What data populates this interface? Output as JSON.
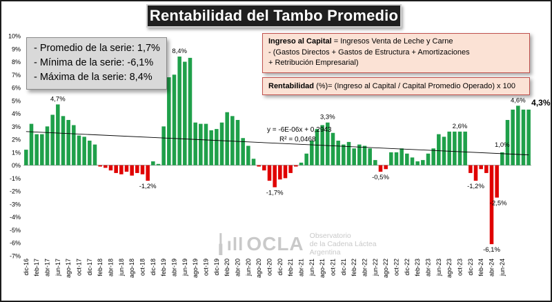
{
  "title": "Rentabilidad del Tambo Promedio",
  "stats": {
    "promedio": "- Promedio de la serie: 1,7%",
    "minima": "- Mínima de la serie: -6,1%",
    "maxima": "- Máxima de la serie: 8,4%"
  },
  "definition": {
    "bold": "Ingreso al Capital",
    "rest": " = Ingresos Venta de Leche y Carne",
    "line2": "-  (Gastos Directos + Gastos de Estructura  + Amortizaciones",
    "line3": "+  Retribución Empresarial)"
  },
  "rentabilidad": {
    "bold": "Rentabilidad",
    "rest": " (%)= (Ingreso al Capital / Capital Promedio Operado) x 100"
  },
  "trendline": {
    "equation": "y = -6E-06x + 0,2943",
    "r2": "R² = 0,0468"
  },
  "logo": {
    "word": "OCLA",
    "line1": "Observatorio",
    "line2": "de la Cadena Láctea",
    "line3": "Argentina"
  },
  "chart_data": {
    "type": "bar",
    "title": "Rentabilidad del Tambo Promedio",
    "ylim": [
      -7,
      10
    ],
    "y_ticks": [
      -7,
      -6,
      -5,
      -4,
      -3,
      -2,
      -1,
      0,
      1,
      2,
      3,
      4,
      5,
      6,
      7,
      8,
      9,
      10
    ],
    "y_tick_format": "percent",
    "grid": false,
    "legend": "none",
    "colors": {
      "positive": "#1fa04a",
      "negative": "#e00000",
      "trendline": "#000000"
    },
    "trendline": {
      "type": "linear",
      "start": 2.6,
      "end": 0.8
    },
    "x_tick_labels": [
      "dic-16",
      "feb-17",
      "abr-17",
      "jun-17",
      "ago-17",
      "oct-17",
      "dic-17",
      "feb-18",
      "abr-18",
      "jun-18",
      "ago-18",
      "oct-18",
      "dic-18",
      "feb-19",
      "abr-19",
      "jun-19",
      "ago-19",
      "oct-19",
      "dic-19",
      "feb-20",
      "abr-20",
      "jun-20",
      "ago-20",
      "oct-20",
      "dic-20",
      "feb-21",
      "abr-21",
      "jun-21",
      "ago-21",
      "oct-21",
      "dic-21",
      "feb-22",
      "abr-22",
      "jun-22",
      "ago-22",
      "oct-22",
      "dic-22",
      "feb-23",
      "abr-23",
      "jun-23",
      "ago-23",
      "oct-23",
      "dic-23",
      "feb-24",
      "abr-24",
      "jun-24"
    ],
    "values": [
      1.2,
      3.2,
      2.4,
      2.4,
      3.0,
      3.9,
      4.7,
      3.8,
      3.5,
      3.1,
      2.3,
      2.2,
      1.9,
      1.6,
      -0.1,
      -0.2,
      -0.4,
      -0.6,
      -0.7,
      -0.5,
      -0.8,
      -0.6,
      -0.7,
      -1.2,
      0.3,
      0.1,
      3.0,
      6.8,
      7.0,
      8.4,
      8.0,
      8.3,
      3.3,
      3.2,
      3.2,
      2.7,
      2.8,
      3.3,
      4.1,
      3.8,
      3.5,
      2.1,
      1.5,
      0.5,
      -0.1,
      -0.4,
      -1.2,
      -1.7,
      -1.1,
      -1.0,
      -0.6,
      -0.1,
      0.2,
      0.9,
      1.9,
      2.8,
      3.1,
      3.3,
      2.5,
      1.9,
      1.6,
      1.8,
      1.3,
      1.6,
      1.5,
      1.3,
      0.4,
      -0.5,
      -0.3,
      1.0,
      1.0,
      1.3,
      0.9,
      0.6,
      0.3,
      0.4,
      0.9,
      1.3,
      2.4,
      2.2,
      2.6,
      2.6,
      2.6,
      2.6,
      -0.6,
      -1.2,
      -0.3,
      -0.6,
      -6.1,
      -2.5,
      1.0,
      3.5,
      4.3,
      4.6,
      4.3,
      4.3
    ],
    "data_labels": [
      {
        "index": 6,
        "text": "4,7%"
      },
      {
        "index": 23,
        "text": "-1,2%"
      },
      {
        "index": 29,
        "text": "8,4%"
      },
      {
        "index": 47,
        "text": "-1,7%"
      },
      {
        "index": 57,
        "text": "3,3%"
      },
      {
        "index": 67,
        "text": "-0,5%"
      },
      {
        "index": 82,
        "text": "2,6%"
      },
      {
        "index": 85,
        "text": "-1,2%"
      },
      {
        "index": 88,
        "text": "-6,1%"
      },
      {
        "index": 89,
        "text": "-2,5%"
      },
      {
        "index": 90,
        "text": "1,0%"
      },
      {
        "index": 93,
        "text": "4,6%"
      },
      {
        "index": 95,
        "text": "4,3%"
      }
    ]
  }
}
